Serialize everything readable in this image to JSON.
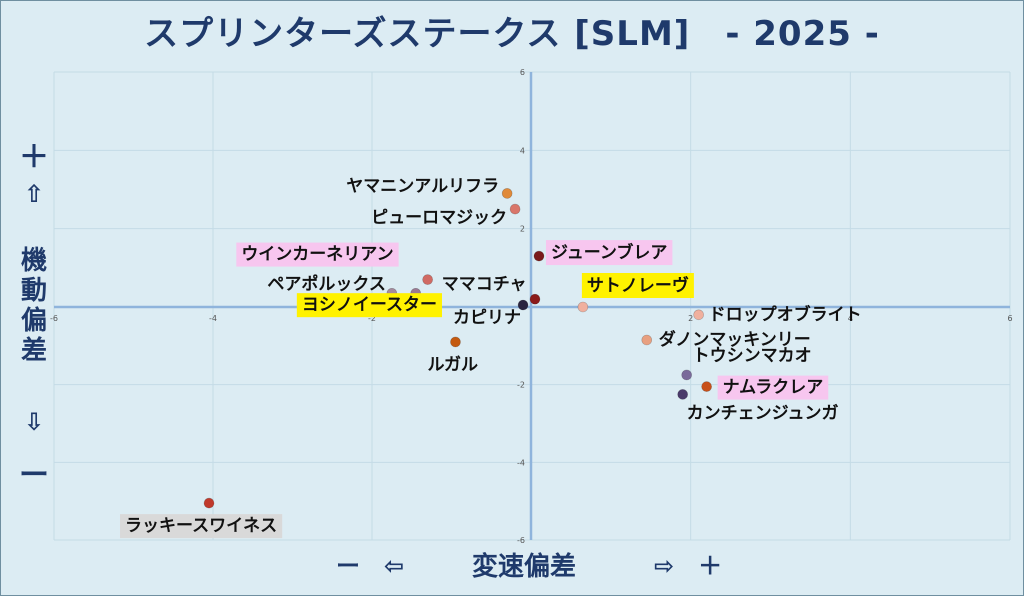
{
  "chart_data": {
    "type": "scatter",
    "title": "スプリンターズステークス [SLM]　- 2025 -",
    "xlabel": "変速偏差",
    "ylabel": "機動偏差",
    "x_minus": "ー　⇦",
    "x_plus": "⇨　＋",
    "y_plus": "＋",
    "y_up": "⇧",
    "y_down": "⇩",
    "y_minus": "ー",
    "xlim": [
      -6,
      6
    ],
    "ylim": [
      -6,
      6
    ],
    "xticks": [
      -6,
      -4,
      -2,
      0,
      2,
      4,
      6
    ],
    "yticks": [
      6,
      4,
      2,
      0,
      -2,
      -4,
      -6
    ],
    "grid": true,
    "points": [
      {
        "name": "ヤマニンアルリフラ",
        "x": -0.3,
        "y": 2.9,
        "color": "#e08a3a",
        "highlight": ""
      },
      {
        "name": "ピューロマジック",
        "x": -0.2,
        "y": 2.5,
        "color": "#d9766a",
        "highlight": ""
      },
      {
        "name": "ジューンブレア",
        "x": 0.1,
        "y": 1.3,
        "color": "#7a1a1a",
        "highlight": "#f7c6ef"
      },
      {
        "name": "ウインカーネリアン",
        "x": -1.3,
        "y": 0.7,
        "color": "#d06a63",
        "highlight": "#f7c6ef"
      },
      {
        "name": "ペアポルックス",
        "x": -1.75,
        "y": 0.35,
        "color": "#a58a9d",
        "highlight": ""
      },
      {
        "name": "ママコチャ",
        "x": -1.45,
        "y": 0.35,
        "color": "#9c7a92",
        "highlight": ""
      },
      {
        "name": "サトノレーヴ",
        "x": 0.65,
        "y": 0.0,
        "color": "#f0b09e",
        "highlight": "#fff200"
      },
      {
        "name": "ヨシノイースター",
        "x": 0.05,
        "y": 0.2,
        "color": "#8b1a1a",
        "highlight": "#fff200"
      },
      {
        "name": "カピリナ",
        "x": -0.1,
        "y": 0.05,
        "color": "#2a2440",
        "highlight": ""
      },
      {
        "name": "ドロップオブライト",
        "x": 2.1,
        "y": -0.2,
        "color": "#f0b09e",
        "highlight": ""
      },
      {
        "name": "ルガル",
        "x": -0.95,
        "y": -0.9,
        "color": "#c45a10",
        "highlight": ""
      },
      {
        "name": "ダノンマッキンリー",
        "x": 1.45,
        "y": -0.85,
        "color": "#e8a080",
        "highlight": ""
      },
      {
        "name": "トウシンマカオ",
        "x": 1.95,
        "y": -1.75,
        "color": "#7a6a9a",
        "highlight": ""
      },
      {
        "name": "ナムラクレア",
        "x": 2.2,
        "y": -2.05,
        "color": "#c8501a",
        "highlight": "#f7c6ef"
      },
      {
        "name": "カンチェンジュンガ",
        "x": 1.9,
        "y": -2.25,
        "color": "#4a3a6a",
        "highlight": ""
      },
      {
        "name": "ラッキースワイネス",
        "x": -4.05,
        "y": -5.05,
        "color": "#c0392b",
        "highlight": "#d9d9d9"
      }
    ]
  }
}
